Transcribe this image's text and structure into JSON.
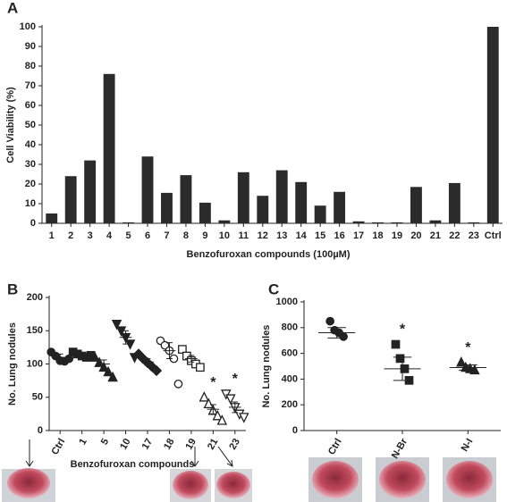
{
  "chart_data": [
    {
      "type": "bar",
      "panel": "A",
      "y_label": "Cell Viability (%)",
      "x_label": "Benzofuroxan compounds (100µM)",
      "categories": [
        "1",
        "2",
        "3",
        "4",
        "5",
        "6",
        "7",
        "8",
        "9",
        "10",
        "11",
        "12",
        "13",
        "14",
        "15",
        "16",
        "17",
        "18",
        "19",
        "20",
        "21",
        "22",
        "23",
        "Ctrl"
      ],
      "values": [
        5,
        24,
        32,
        76,
        0.5,
        34,
        15.5,
        24.5,
        10.5,
        1.5,
        26,
        14,
        27,
        21,
        9,
        16,
        1,
        0.5,
        0.5,
        18.5,
        1.5,
        20.5,
        0.5,
        100
      ],
      "color": "#2b2b2b",
      "ylim": [
        0,
        100
      ],
      "yticks": [
        0,
        10,
        20,
        30,
        40,
        50,
        60,
        70,
        80,
        90,
        100
      ]
    },
    {
      "type": "dot",
      "panel": "B",
      "y_label": "No. Lung nodules",
      "x_label": "Benzofuroxan compounds",
      "categories": [
        "Ctrl",
        "1",
        "5",
        "10",
        "17",
        "18",
        "19",
        "21",
        "23"
      ],
      "points": [
        [
          118,
          112,
          105,
          104,
          108
        ],
        [
          118,
          115,
          112,
          110,
          113
        ],
        [
          110,
          102,
          95,
          88,
          80
        ],
        [
          160,
          150,
          140,
          130,
          110
        ],
        [
          115,
          108,
          102,
          96,
          90
        ],
        [
          135,
          128,
          120,
          108,
          70
        ],
        [
          122,
          112,
          105,
          100,
          95
        ],
        [
          50,
          40,
          30,
          22,
          15
        ],
        [
          55,
          48,
          35,
          25,
          20
        ]
      ],
      "means": [
        110,
        113,
        100,
        140,
        103,
        120,
        108,
        32,
        35
      ],
      "errors": [
        5,
        4,
        6,
        10,
        5,
        12,
        5,
        7,
        8
      ],
      "markers": [
        "circle",
        "square",
        "triangle",
        "triangle-down",
        "diamond",
        "circle-open",
        "square-open",
        "triangle-open",
        "triangle-down-open"
      ],
      "annotations": [
        {
          "x": "21",
          "text": "*"
        },
        {
          "x": "23",
          "text": "*"
        }
      ],
      "ylim": [
        0,
        200
      ],
      "yticks": [
        0,
        50,
        100,
        150,
        200
      ]
    },
    {
      "type": "dot",
      "panel": "C",
      "y_label": "No. Lung nodules",
      "categories": [
        "Ctrl",
        "N-Br",
        "N-I"
      ],
      "points": [
        [
          850,
          780,
          760,
          730
        ],
        [
          670,
          560,
          480,
          390
        ],
        [
          530,
          490,
          480,
          470
        ]
      ],
      "means": [
        760,
        480,
        490
      ],
      "errors": [
        40,
        90,
        20
      ],
      "markers": [
        "circle",
        "square",
        "triangle"
      ],
      "annotations": [
        {
          "x": "N-Br",
          "text": "*"
        },
        {
          "x": "N-I",
          "text": "*"
        }
      ],
      "ylim": [
        0,
        1000
      ],
      "yticks": [
        0,
        200,
        400,
        600,
        800,
        1000
      ]
    }
  ]
}
